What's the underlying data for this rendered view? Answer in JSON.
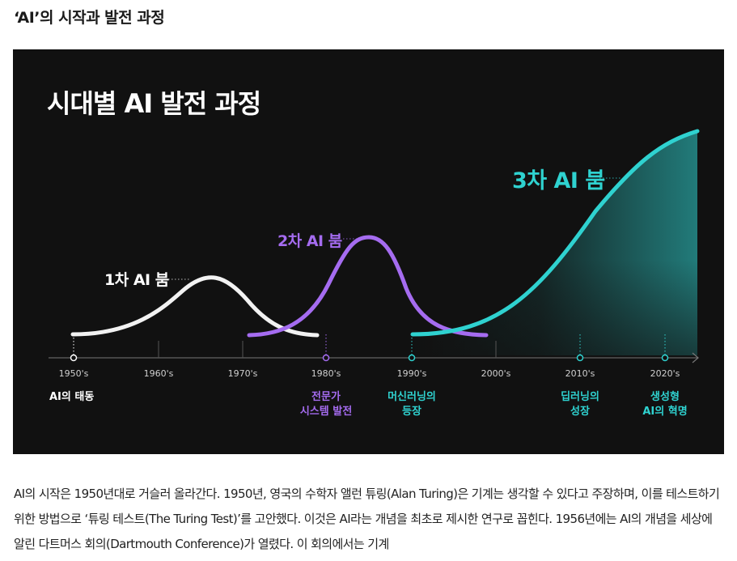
{
  "section_title": "‘AI’의 시작과 발전 과정",
  "figure": {
    "title": "시대별 AI 발전 과정",
    "booms": [
      {
        "label": "1차 AI 붐",
        "color": "#ffffff"
      },
      {
        "label": "2차 AI 붐",
        "color": "#a56cf0"
      },
      {
        "label": "3차 AI 붐",
        "color": "#2fd2d0"
      }
    ],
    "decades": [
      "1950's",
      "1960's",
      "1970's",
      "1980's",
      "1990's",
      "2000's",
      "2010's",
      "2020's"
    ],
    "events": [
      {
        "decade": "1950's",
        "label": "AI의 태동",
        "color": "#ffffff"
      },
      {
        "decade": "1980's",
        "label": "전문가\n시스템 발전",
        "color": "#a56cf0"
      },
      {
        "decade": "1990's",
        "label": "머신러닝의\n등장",
        "color": "#2fd2d0"
      },
      {
        "decade": "2010's",
        "label": "딥러닝의\n성장",
        "color": "#2fd2d0"
      },
      {
        "decade": "2020's",
        "label": "생성형\nAI의 혁명",
        "color": "#2fd2d0"
      }
    ],
    "colors": {
      "background": "#111111",
      "boom_1": "#ffffff",
      "boom_2": "#a56cf0",
      "boom_3": "#2fd2d0",
      "axis": "#777777"
    }
  },
  "body_text": "AI의 시작은 1950년대로 거슬러 올라간다. 1950년, 영국의 수학자 앨런 튜링(Alan Turing)은 기계는 생각할 수 있다고 주장하며, 이를 테스트하기 위한 방법으로 ‘튜링 테스트(The Turing Test)’를 고안했다. 이것은 AI라는 개념을 최초로 제시한 연구로 꼽힌다. 1956년에는 AI의 개념을 세상에 알린 다트머스 회의(Dartmouth Conference)가 열렸다. 이 회의에서는 기계"
}
